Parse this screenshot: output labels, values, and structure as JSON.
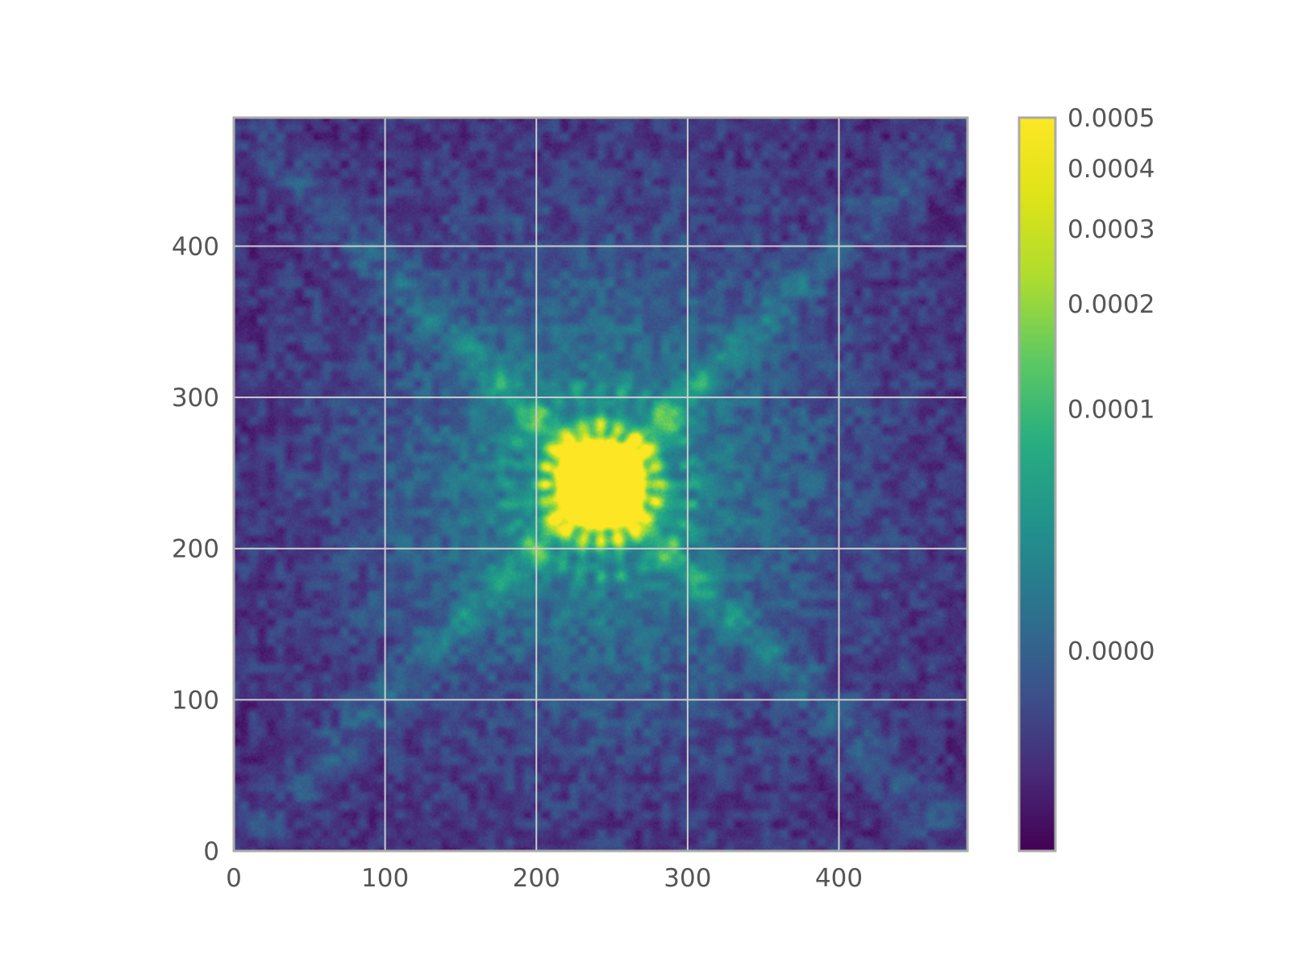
{
  "chart_data": {
    "type": "heatmap",
    "title": "",
    "xlabel": "",
    "ylabel": "",
    "xlim": [
      0,
      485
    ],
    "ylim": [
      0,
      485
    ],
    "grid": true,
    "x_ticks": [
      "0",
      "100",
      "200",
      "300",
      "400"
    ],
    "y_ticks": [
      "0",
      "100",
      "200",
      "300",
      "400"
    ],
    "colormap": "viridis",
    "colorbar": {
      "scale": "nonlinear (stretched)",
      "range": [
        -1e-05,
        0.0005
      ],
      "ticks": [
        {
          "label": "0.0000",
          "value": 0.0
        },
        {
          "label": "0.0001",
          "value": 0.0001
        },
        {
          "label": "0.0002",
          "value": 0.0002
        },
        {
          "label": "0.0003",
          "value": 0.0003
        },
        {
          "label": "0.0004",
          "value": 0.0004
        },
        {
          "label": "0.0005",
          "value": 0.0005
        }
      ]
    },
    "image": {
      "description_of_structure": "bright saturated core with ring of speckles, four diagonal diffraction spikes, noisy background",
      "center": [
        242,
        242
      ],
      "core_peak": 0.0005,
      "background_level": 0.0
    }
  },
  "colors": {
    "viridis": [
      "#440154",
      "#482878",
      "#3e4989",
      "#31688e",
      "#26828e",
      "#1f9e89",
      "#35b779",
      "#6ece58",
      "#b5de2b",
      "#fde725"
    ],
    "frame": "#aaaaaa",
    "grid": "#cccccc",
    "text": "#555555"
  }
}
